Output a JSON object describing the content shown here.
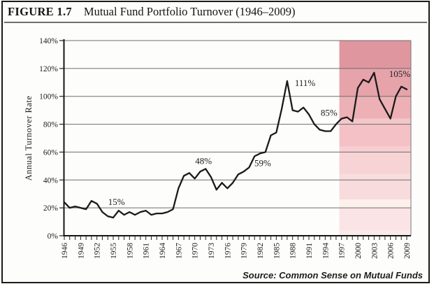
{
  "header": {
    "figure_label": "FIGURE 1.7",
    "title": "Mutual Fund Portfolio Turnover (1946–2009)"
  },
  "footer": {
    "source": "Source: Common Sense on Mutual Funds"
  },
  "chart_data": {
    "type": "line",
    "title": "Mutual Fund Portfolio Turnover (1946–2009)",
    "xlabel": "",
    "ylabel": "Annual Turnover Rate",
    "ylim": [
      0,
      140
    ],
    "yticks": [
      0,
      20,
      40,
      60,
      80,
      100,
      120,
      140
    ],
    "ytick_suffix": "%",
    "xticks": [
      1946,
      1949,
      1952,
      1955,
      1958,
      1961,
      1964,
      1967,
      1970,
      1973,
      1976,
      1979,
      1982,
      1985,
      1988,
      1991,
      1994,
      1997,
      2000,
      2003,
      2006,
      2009
    ],
    "grid": "horizontal",
    "legend": "none",
    "line_color": "#1a1a1a",
    "years": [
      1946,
      1947,
      1948,
      1949,
      1950,
      1951,
      1952,
      1953,
      1954,
      1955,
      1956,
      1957,
      1958,
      1959,
      1960,
      1961,
      1962,
      1963,
      1964,
      1965,
      1966,
      1967,
      1968,
      1969,
      1970,
      1971,
      1972,
      1973,
      1974,
      1975,
      1976,
      1977,
      1978,
      1979,
      1980,
      1981,
      1982,
      1983,
      1984,
      1985,
      1986,
      1987,
      1988,
      1989,
      1990,
      1991,
      1992,
      1993,
      1994,
      1995,
      1996,
      1997,
      1998,
      1999,
      2000,
      2001,
      2002,
      2003,
      2004,
      2005,
      2006,
      2007,
      2008,
      2009
    ],
    "values": [
      24,
      20,
      21,
      20,
      19,
      25,
      23,
      17,
      14,
      13,
      18,
      15,
      17,
      15,
      17,
      18,
      15,
      16,
      16,
      17,
      19,
      34,
      43,
      45,
      41,
      46,
      48,
      42,
      33,
      38,
      34,
      38,
      44,
      46,
      49,
      57,
      59,
      60,
      72,
      74,
      91,
      111,
      90,
      89,
      92,
      87,
      80,
      76,
      75,
      75,
      80,
      84,
      85,
      82,
      106,
      112,
      110,
      117,
      98,
      91,
      84,
      100,
      107,
      105
    ],
    "annotations": [
      {
        "text": "15%",
        "year": 1955.6,
        "value": 24
      },
      {
        "text": "48%",
        "year": 1971.6,
        "value": 53.5
      },
      {
        "text": "59%",
        "year": 1982.5,
        "value": 52
      },
      {
        "text": "111%",
        "year": 1990.3,
        "value": 109.5
      },
      {
        "text": "85%",
        "year": 1994.7,
        "value": 88
      },
      {
        "text": "105%",
        "year": 2007.7,
        "value": 116
      }
    ],
    "shaded_region": {
      "start_year": 1996.6,
      "end_year": 2009,
      "bands": [
        [
          140,
          120,
          "#df969e"
        ],
        [
          120,
          100,
          "#e6a3aa"
        ],
        [
          100,
          84,
          "#ecb0b5"
        ],
        [
          84,
          80,
          "#f3c7ca"
        ],
        [
          80,
          64,
          "#f4c2c6"
        ],
        [
          64,
          60,
          "#f7cfd2"
        ],
        [
          60,
          44,
          "#f7d3d6"
        ],
        [
          44,
          40,
          "#f9dcde"
        ],
        [
          40,
          26,
          "#f8dbdd"
        ],
        [
          26,
          20,
          "#fcf0ea"
        ],
        [
          20,
          4,
          "#fae4e6"
        ],
        [
          4,
          0,
          "#fbeaea"
        ]
      ]
    }
  }
}
